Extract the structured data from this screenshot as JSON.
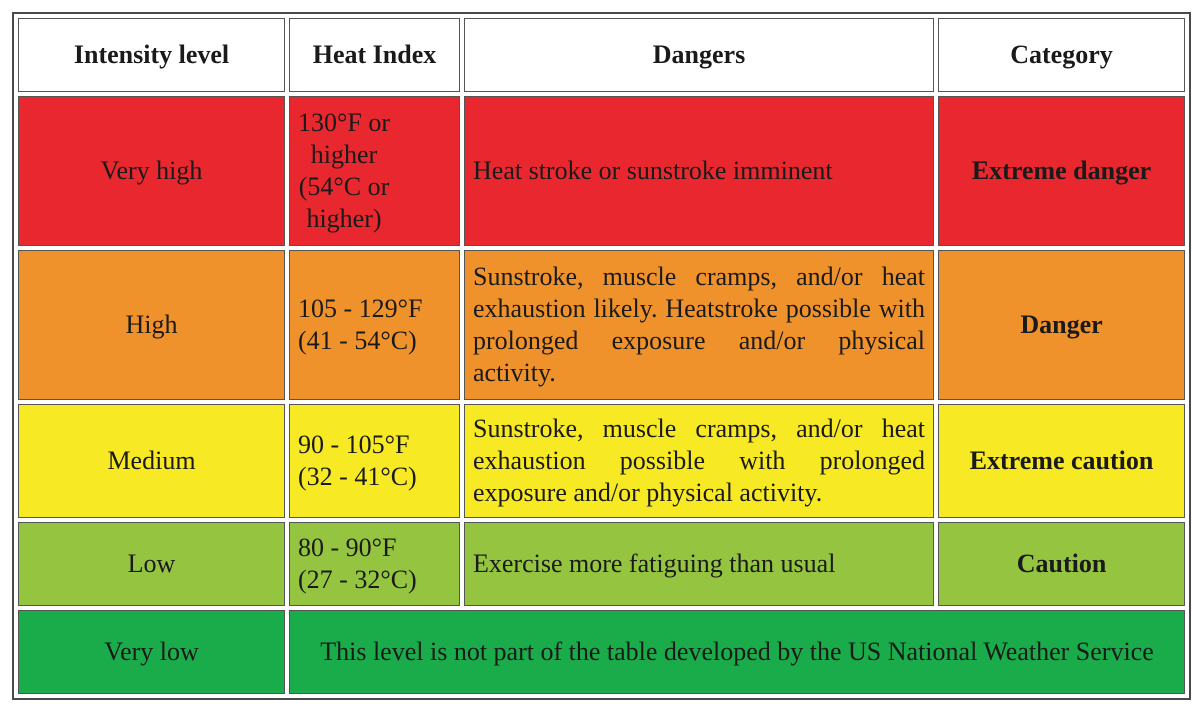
{
  "headers": {
    "intensity": "Intensity level",
    "heat_index": "Heat Index",
    "dangers": "Dangers",
    "category": "Category"
  },
  "colors": {
    "very_high": "#e8272f",
    "high": "#f0922b",
    "medium": "#f7ea24",
    "low": "#94c440",
    "very_low": "#1aab4b",
    "header": "#ffffff",
    "border": "#4a4a4a"
  },
  "rows": [
    {
      "level": "Very high",
      "heat_lines": [
        "130°F or",
        "higher",
        "(54°C or",
        "higher)"
      ],
      "dangers": "Heat stroke or sunstroke imminent",
      "category": "Extreme danger"
    },
    {
      "level": "High",
      "heat_lines": [
        "105 - 129°F",
        "(41 - 54°C)"
      ],
      "dangers": "Sunstroke, muscle cramps, and/or heat exhaustion likely. Heatstroke possible with prolonged exposure and/or physical activity.",
      "category": "Danger"
    },
    {
      "level": "Medium",
      "heat_lines": [
        "90 - 105°F",
        "(32 - 41°C)"
      ],
      "dangers": "Sunstroke, muscle cramps, and/or heat exhaustion possible with prolonged exposure and/or physical activity.",
      "category": "Extreme caution"
    },
    {
      "level": "Low",
      "heat_lines": [
        "80 - 90°F",
        "(27 - 32°C)"
      ],
      "dangers": "Exercise more fatiguing than usual",
      "category": "Caution"
    }
  ],
  "very_low": {
    "level": "Very low",
    "note": "This level is not part of the table developed by the US National Weather Service"
  }
}
